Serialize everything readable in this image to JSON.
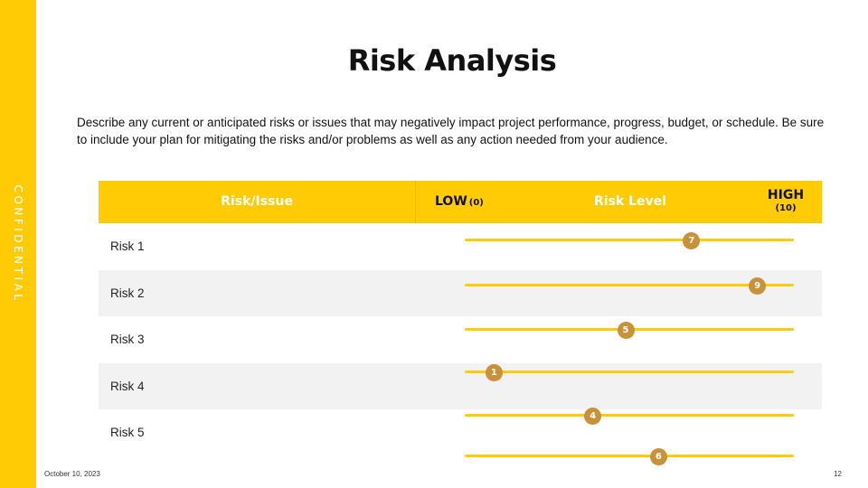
{
  "sidebar": {
    "label": "CONFIDENTIAL"
  },
  "slide": {
    "title": "Risk Analysis",
    "description": "Describe any current or anticipated risks or issues that may negatively impact project performance, progress, budget, or schedule. Be sure to include your plan for mitigating the risks and/or problems as well as any action needed from your audience."
  },
  "table": {
    "header": {
      "risk_issue": "Risk/Issue",
      "low": "LOW",
      "low_scale": "(0)",
      "risk_level": "Risk Level",
      "high": "HIGH",
      "high_scale": "(10)"
    },
    "scale_min": 0,
    "scale_max": 10,
    "rows": [
      {
        "label": "Risk 1",
        "level": 7
      },
      {
        "label": "Risk 2",
        "level": 9
      },
      {
        "label": "Risk 3",
        "level": 5
      },
      {
        "label": "Risk 4",
        "level": 1
      },
      {
        "label": "Risk 5",
        "level": 4
      }
    ],
    "extra_marker": {
      "level": 6
    }
  },
  "footer": {
    "date": "October 10, 2023",
    "page": "12"
  },
  "colors": {
    "accent": "#FFCB05",
    "marker": "#C8913A",
    "alt_row": "#F2F2F2"
  }
}
